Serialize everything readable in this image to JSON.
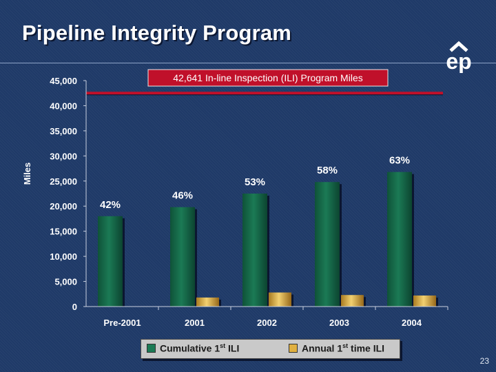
{
  "title": "Pipeline Integrity Program",
  "page_number": "23",
  "logo_text": "ep",
  "colors": {
    "background": "#1f3a68",
    "cumulative": "#1b7a55",
    "annual": "#e0b040",
    "reference_line": "#c0102a"
  },
  "legend": {
    "cumulative_label": "Cumulative 1",
    "cumulative_sup": "st",
    "cumulative_suffix": " ILI",
    "annual_label": "Annual 1",
    "annual_sup": "st",
    "annual_suffix": " time ILI"
  },
  "chart_data": {
    "type": "bar",
    "title": "",
    "xlabel": "",
    "ylabel": "Miles",
    "ylim": [
      0,
      45000
    ],
    "yticks": [
      "0",
      "5,000",
      "10,000",
      "15,000",
      "20,000",
      "25,000",
      "30,000",
      "35,000",
      "40,000",
      "45,000"
    ],
    "categories": [
      "Pre-2001",
      "2001",
      "2002",
      "2003",
      "2004"
    ],
    "series": [
      {
        "name": "Cumulative 1st ILI",
        "values": [
          18000,
          19800,
          22500,
          24800,
          26800
        ]
      },
      {
        "name": "Annual 1st time ILI",
        "values": [
          0,
          1800,
          2800,
          2300,
          2200
        ]
      }
    ],
    "data_labels": [
      "42%",
      "46%",
      "53%",
      "58%",
      "63%"
    ],
    "reference_line": {
      "value": 42641,
      "label": "42,641 In-line Inspection (ILI) Program Miles"
    },
    "grid": false,
    "legend_position": "bottom"
  }
}
